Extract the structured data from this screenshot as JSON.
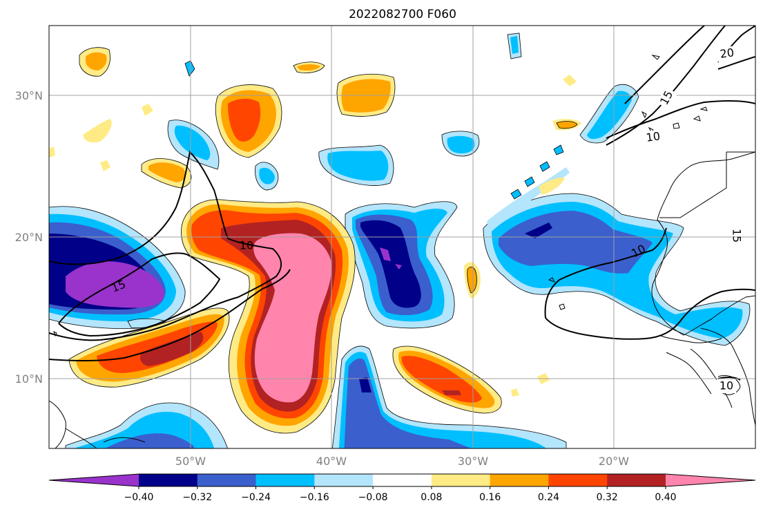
{
  "title": "2022082700 F060",
  "map": {
    "lat_labels": [
      "30°N",
      "20°N",
      "10°N"
    ],
    "lon_labels": [
      "50°W",
      "40°W",
      "30°W",
      "20°W"
    ],
    "gridlines": true
  },
  "contour_labels": [
    "10",
    "15",
    "10",
    "20",
    "15",
    "10",
    "15",
    "10"
  ],
  "colorbar": {
    "tick_labels": [
      "−0.40",
      "−0.32",
      "−0.24",
      "−0.16",
      "−0.08",
      "0.08",
      "0.16",
      "0.24",
      "0.32",
      "0.40"
    ],
    "extend": "both",
    "colors": [
      "#9933cc",
      "#000088",
      "#3b5fcd",
      "#00bfff",
      "#b3e5fc",
      "#ffffff",
      "#ffeb85",
      "#ffa500",
      "#ff4500",
      "#b22222",
      "#ff85ad"
    ]
  },
  "palette": {
    "purple": "#9933cc",
    "navy": "#000088",
    "blue": "#3b5fcd",
    "cyan": "#00bfff",
    "lightblue": "#b3e5fc",
    "yellow": "#ffeb85",
    "orange": "#ffa500",
    "redorange": "#ff4500",
    "darkred": "#b22222",
    "pink": "#ff85ad"
  }
}
